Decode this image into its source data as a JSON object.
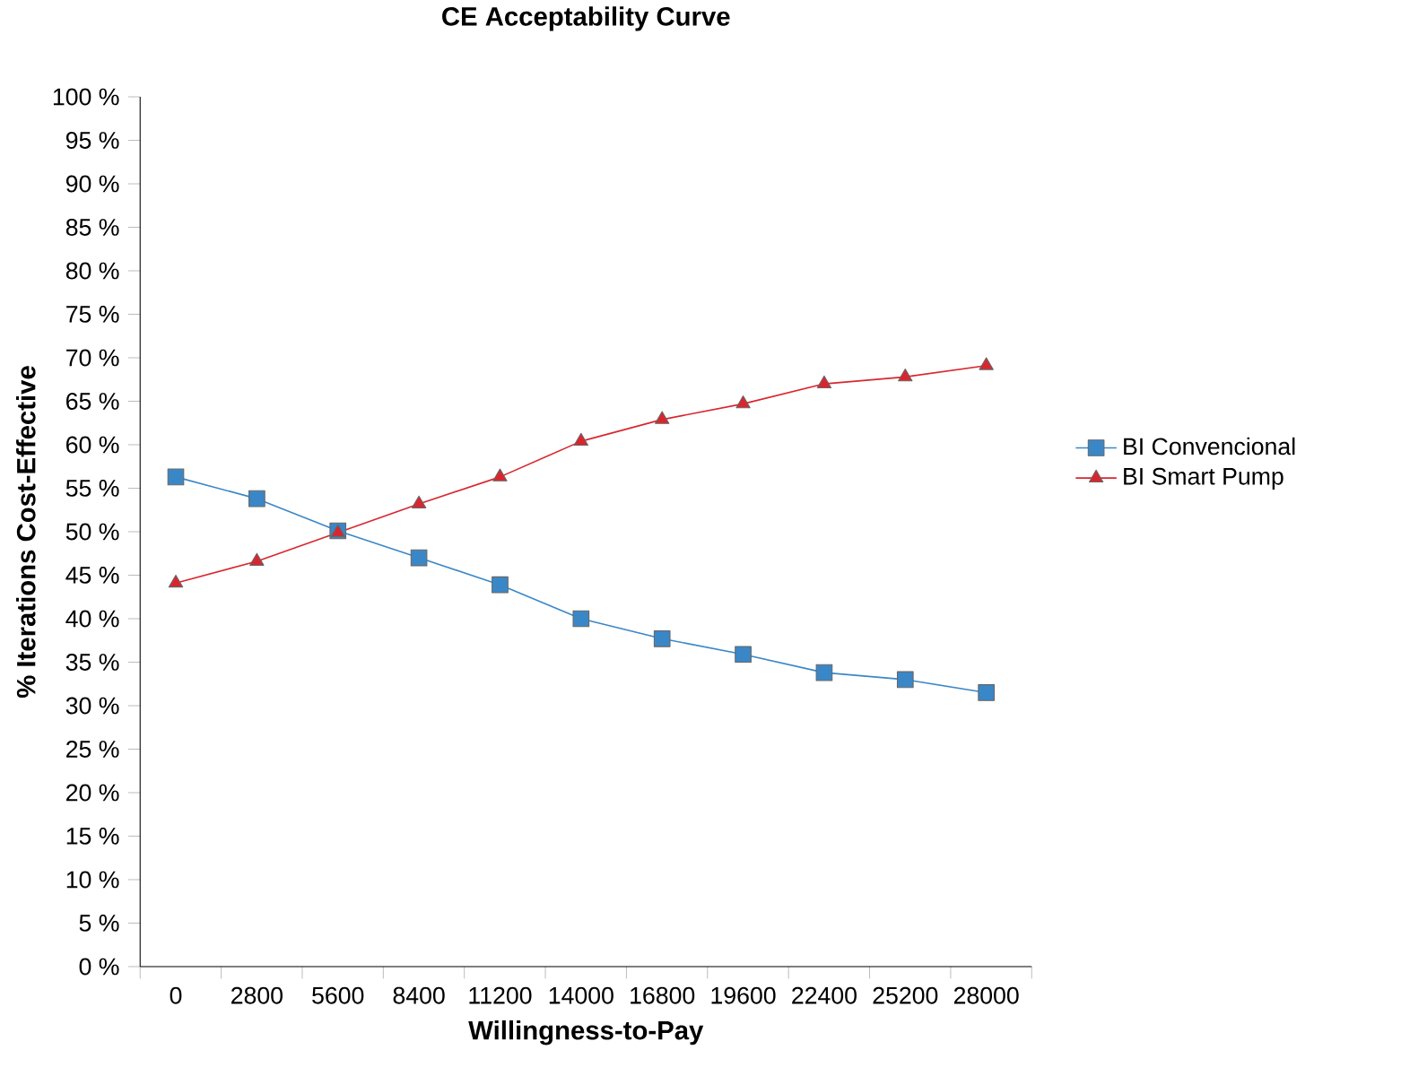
{
  "chart_data": {
    "type": "line",
    "title": "CE Acceptability Curve",
    "xlabel": "Willingness-to-Pay",
    "ylabel": "% Iterations Cost-Effective",
    "categories": [
      "0",
      "2800",
      "5600",
      "8400",
      "11200",
      "14000",
      "16800",
      "19600",
      "22400",
      "25200",
      "28000"
    ],
    "ylim": [
      0,
      100
    ],
    "yticks": [
      {
        "value": 0,
        "label": "0 %"
      },
      {
        "value": 5,
        "label": "5 %"
      },
      {
        "value": 10,
        "label": "10 %"
      },
      {
        "value": 15,
        "label": "15 %"
      },
      {
        "value": 20,
        "label": "20 %"
      },
      {
        "value": 25,
        "label": "25 %"
      },
      {
        "value": 30,
        "label": "30 %"
      },
      {
        "value": 35,
        "label": "35 %"
      },
      {
        "value": 40,
        "label": "40 %"
      },
      {
        "value": 45,
        "label": "45 %"
      },
      {
        "value": 50,
        "label": "50 %"
      },
      {
        "value": 55,
        "label": "55 %"
      },
      {
        "value": 60,
        "label": "60 %"
      },
      {
        "value": 65,
        "label": "65 %"
      },
      {
        "value": 70,
        "label": "70 %"
      },
      {
        "value": 75,
        "label": "75 %"
      },
      {
        "value": 80,
        "label": "80 %"
      },
      {
        "value": 85,
        "label": "85 %"
      },
      {
        "value": 90,
        "label": "90 %"
      },
      {
        "value": 95,
        "label": "95 %"
      },
      {
        "value": 100,
        "label": "100 %"
      }
    ],
    "grid": false,
    "legend": "right",
    "line_style": "solid",
    "series": [
      {
        "name": "BI Convencional",
        "color": "#3a87c8",
        "marker": "square",
        "values": [
          56.3,
          53.8,
          50.1,
          47.0,
          43.9,
          40.0,
          37.7,
          35.9,
          33.8,
          33.0,
          31.5
        ]
      },
      {
        "name": "BI Smart Pump",
        "color": "#d9262e",
        "marker": "triangle",
        "values": [
          44.1,
          46.6,
          49.9,
          53.2,
          56.3,
          60.4,
          62.9,
          64.7,
          67.0,
          67.8,
          69.1
        ]
      }
    ]
  }
}
